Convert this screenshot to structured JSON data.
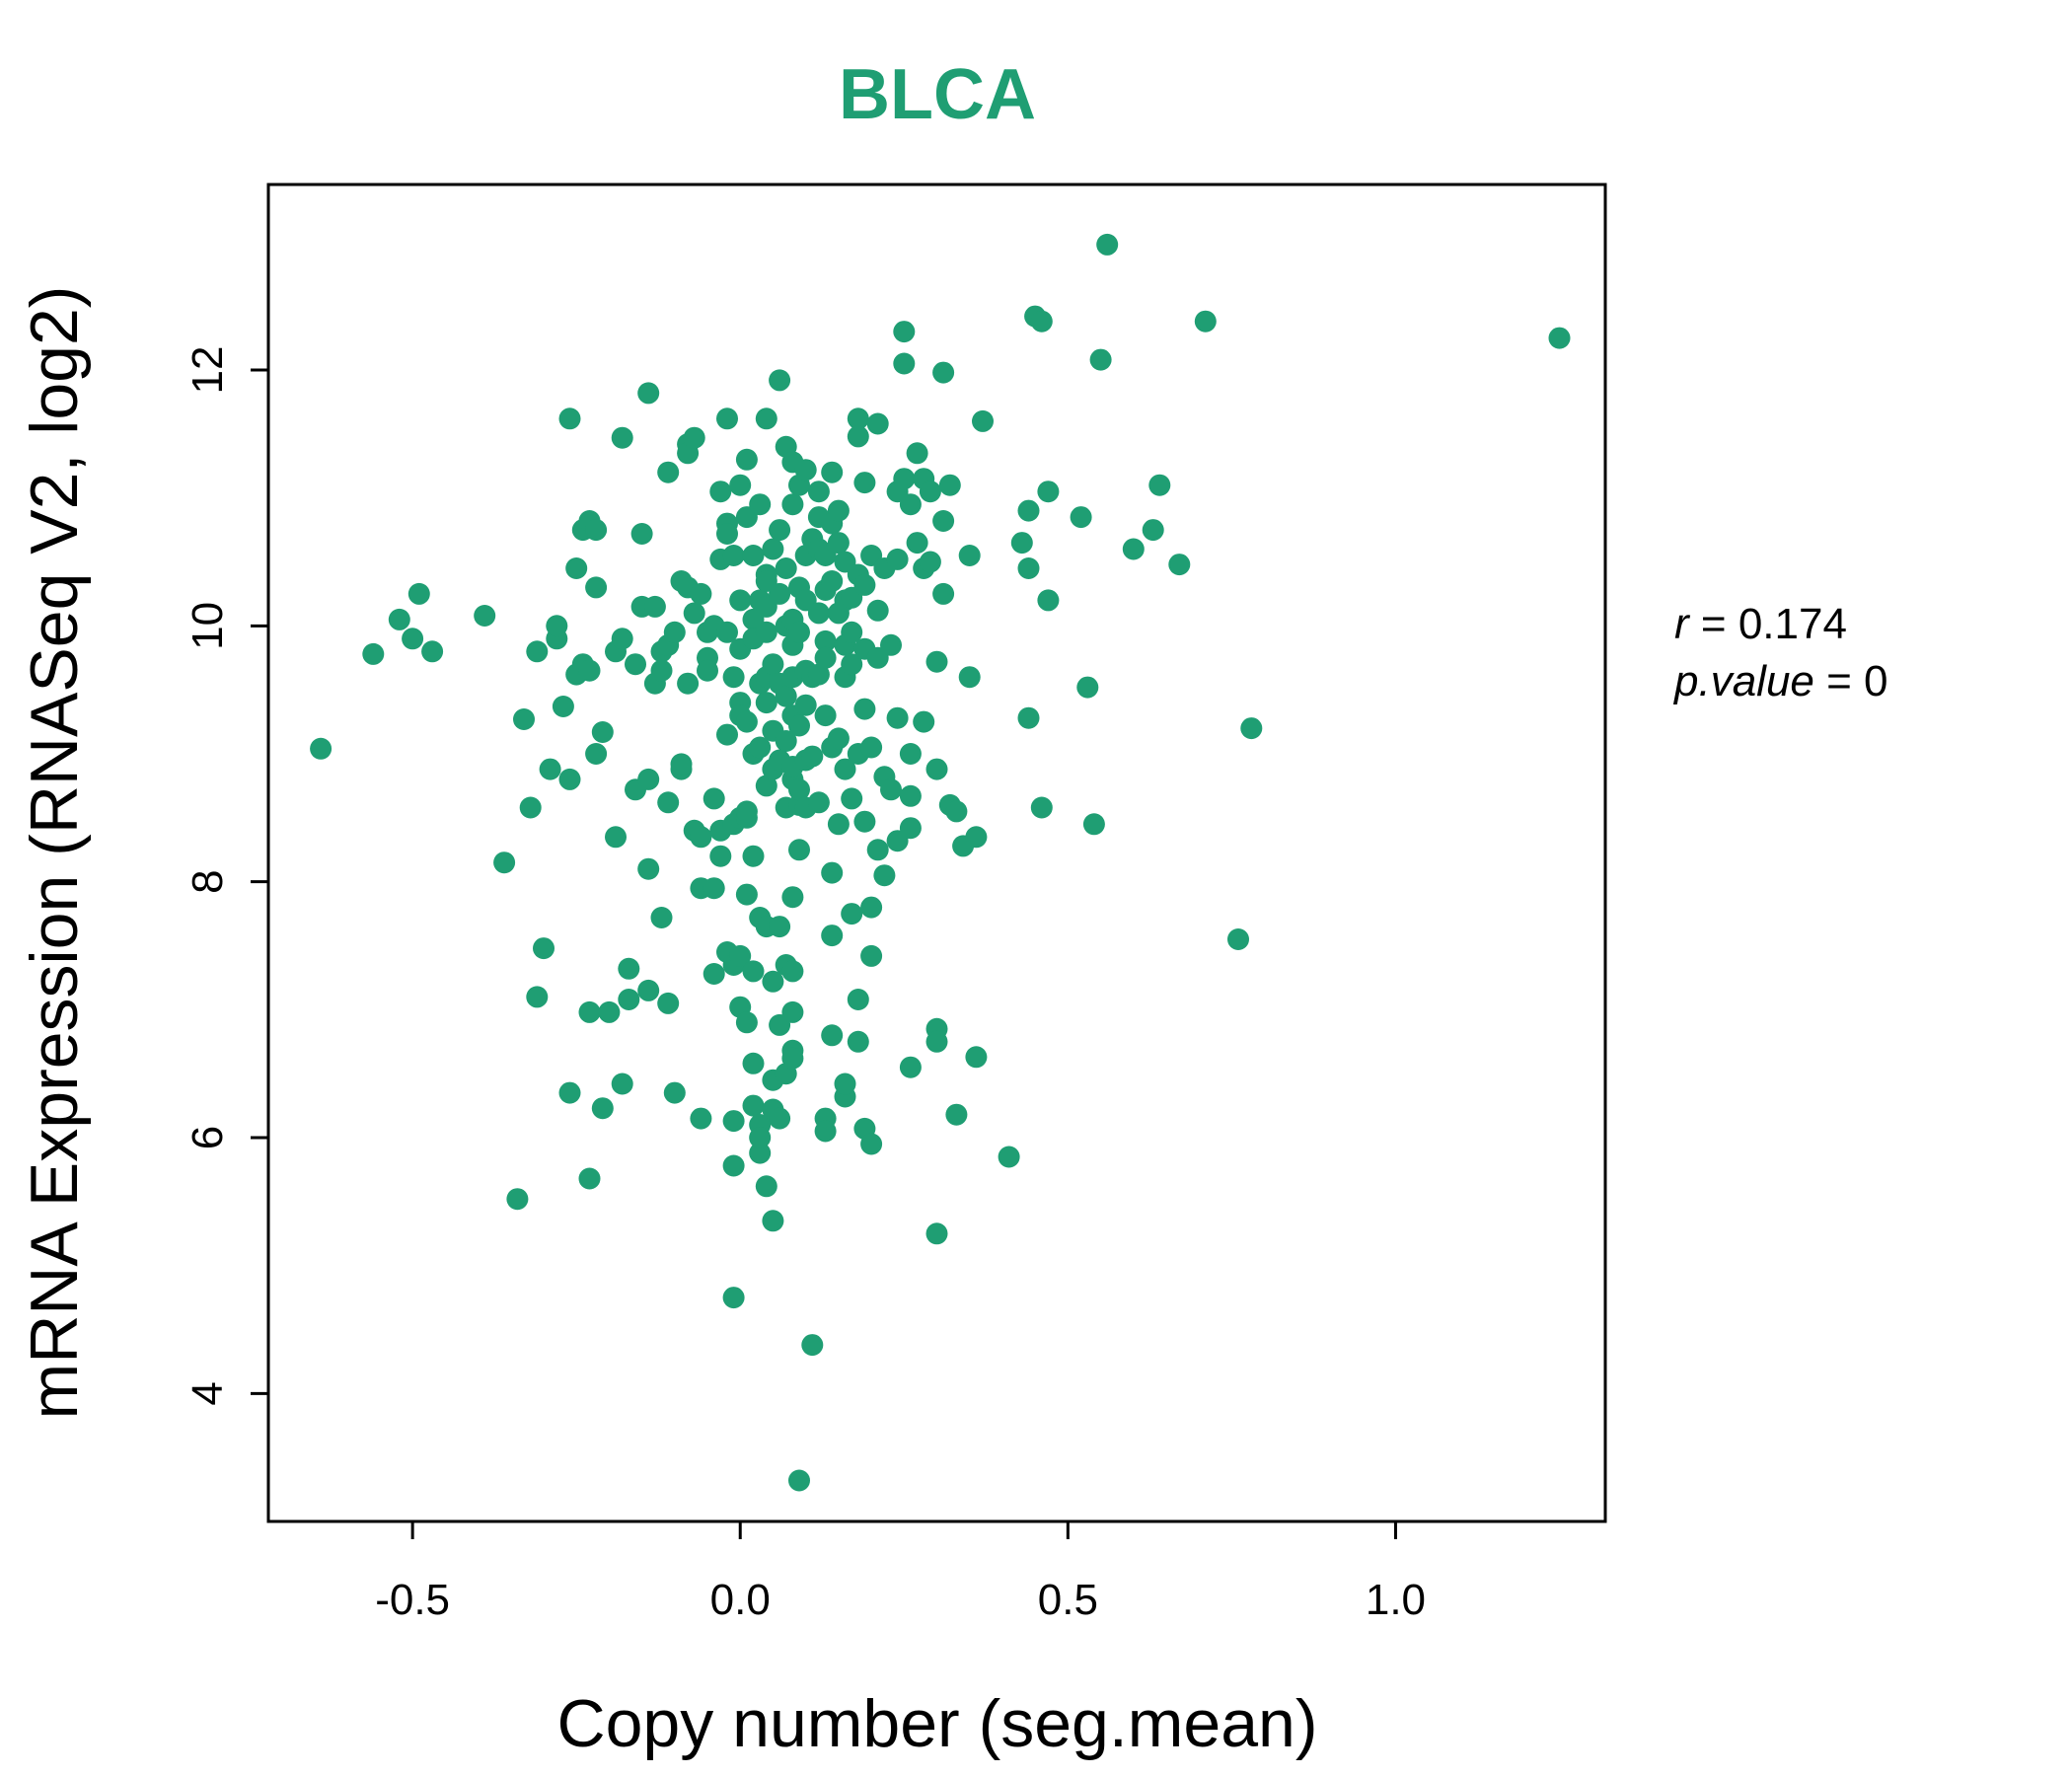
{
  "chart_data": {
    "type": "scatter",
    "title": "BLCA",
    "xlabel": "Copy number (seg.mean)",
    "ylabel": "mRNA Expression (RNASeq V2, log2)",
    "xlim": [
      -0.72,
      1.32
    ],
    "ylim": [
      3.0,
      13.45
    ],
    "x_ticks": [
      -0.5,
      0.0,
      0.5,
      1.0
    ],
    "x_tick_labels": [
      "-0.5",
      "0.0",
      "0.5",
      "1.0"
    ],
    "y_ticks": [
      4,
      6,
      8,
      10,
      12
    ],
    "y_tick_labels": [
      "4",
      "6",
      "8",
      "10",
      "12"
    ],
    "grid": false,
    "point_color": "#1f9e73",
    "title_color": "#1f9e73",
    "stats": {
      "r_var": "r",
      "r_value": "0.174",
      "p_var": "p.value",
      "p_value": "0"
    },
    "points": [
      [
        -0.64,
        9.04
      ],
      [
        -0.56,
        9.78
      ],
      [
        -0.52,
        10.05
      ],
      [
        -0.5,
        9.9
      ],
      [
        -0.49,
        10.25
      ],
      [
        -0.47,
        9.8
      ],
      [
        -0.39,
        10.08
      ],
      [
        -0.36,
        8.15
      ],
      [
        -0.34,
        5.52
      ],
      [
        -0.33,
        9.27
      ],
      [
        -0.32,
        8.58
      ],
      [
        -0.31,
        7.1
      ],
      [
        -0.31,
        9.8
      ],
      [
        -0.3,
        7.48
      ],
      [
        -0.29,
        8.88
      ],
      [
        -0.28,
        9.9
      ],
      [
        -0.28,
        10.0
      ],
      [
        -0.27,
        9.37
      ],
      [
        -0.26,
        8.8
      ],
      [
        -0.26,
        6.35
      ],
      [
        -0.26,
        11.62
      ],
      [
        -0.25,
        10.45
      ],
      [
        -0.25,
        9.62
      ],
      [
        -0.24,
        9.7
      ],
      [
        -0.24,
        10.75
      ],
      [
        -0.23,
        10.82
      ],
      [
        -0.23,
        9.65
      ],
      [
        -0.23,
        6.98
      ],
      [
        -0.23,
        5.68
      ],
      [
        -0.22,
        9.0
      ],
      [
        -0.22,
        10.75
      ],
      [
        -0.22,
        10.3
      ],
      [
        -0.21,
        9.17
      ],
      [
        -0.21,
        6.23
      ],
      [
        -0.2,
        6.98
      ],
      [
        -0.19,
        9.8
      ],
      [
        -0.19,
        8.35
      ],
      [
        -0.18,
        9.9
      ],
      [
        -0.18,
        11.47
      ],
      [
        -0.18,
        6.42
      ],
      [
        -0.17,
        7.08
      ],
      [
        -0.17,
        7.32
      ],
      [
        -0.16,
        9.7
      ],
      [
        -0.16,
        8.72
      ],
      [
        -0.15,
        10.15
      ],
      [
        -0.15,
        10.72
      ],
      [
        -0.14,
        8.8
      ],
      [
        -0.14,
        8.1
      ],
      [
        -0.14,
        11.82
      ],
      [
        -0.14,
        7.15
      ],
      [
        -0.13,
        9.55
      ],
      [
        -0.13,
        10.15
      ],
      [
        -0.12,
        7.72
      ],
      [
        -0.12,
        9.8
      ],
      [
        -0.12,
        9.65
      ],
      [
        -0.11,
        8.62
      ],
      [
        -0.11,
        7.05
      ],
      [
        -0.11,
        11.2
      ],
      [
        -0.11,
        9.85
      ],
      [
        -0.1,
        6.35
      ],
      [
        -0.1,
        9.95
      ],
      [
        -0.09,
        8.88
      ],
      [
        -0.09,
        8.92
      ],
      [
        -0.09,
        10.35
      ],
      [
        -0.08,
        10.3
      ],
      [
        -0.08,
        11.42
      ],
      [
        -0.08,
        11.35
      ],
      [
        -0.08,
        9.55
      ],
      [
        -0.07,
        8.4
      ],
      [
        -0.07,
        10.1
      ],
      [
        -0.07,
        11.47
      ],
      [
        -0.06,
        7.95
      ],
      [
        -0.06,
        6.15
      ],
      [
        -0.06,
        8.35
      ],
      [
        -0.06,
        10.25
      ],
      [
        -0.05,
        9.75
      ],
      [
        -0.05,
        9.65
      ],
      [
        -0.05,
        9.95
      ],
      [
        -0.04,
        7.95
      ],
      [
        -0.04,
        10.0
      ],
      [
        -0.04,
        8.65
      ],
      [
        -0.04,
        7.28
      ],
      [
        -0.03,
        8.2
      ],
      [
        -0.03,
        10.52
      ],
      [
        -0.03,
        8.4
      ],
      [
        -0.03,
        11.05
      ],
      [
        -0.02,
        10.8
      ],
      [
        -0.02,
        9.15
      ],
      [
        -0.02,
        9.95
      ],
      [
        -0.02,
        10.72
      ],
      [
        -0.02,
        11.62
      ],
      [
        -0.02,
        7.45
      ],
      [
        -0.01,
        9.6
      ],
      [
        -0.01,
        10.55
      ],
      [
        -0.01,
        8.45
      ],
      [
        -0.01,
        7.35
      ],
      [
        -0.01,
        4.75
      ],
      [
        -0.01,
        5.78
      ],
      [
        -0.01,
        6.13
      ],
      [
        -0.0,
        9.4
      ],
      [
        -0.0,
        8.5
      ],
      [
        0.0,
        9.3
      ],
      [
        0.0,
        7.42
      ],
      [
        0.0,
        7.02
      ],
      [
        0.0,
        9.82
      ],
      [
        0.0,
        10.2
      ],
      [
        0.0,
        11.1
      ],
      [
        0.01,
        10.85
      ],
      [
        0.01,
        8.5
      ],
      [
        0.01,
        9.25
      ],
      [
        0.01,
        8.55
      ],
      [
        0.01,
        7.9
      ],
      [
        0.01,
        6.9
      ],
      [
        0.01,
        11.3
      ],
      [
        0.02,
        7.3
      ],
      [
        0.02,
        9.0
      ],
      [
        0.02,
        10.05
      ],
      [
        0.02,
        10.55
      ],
      [
        0.02,
        9.9
      ],
      [
        0.02,
        8.2
      ],
      [
        0.02,
        6.58
      ],
      [
        0.02,
        6.25
      ],
      [
        0.03,
        9.55
      ],
      [
        0.03,
        10.2
      ],
      [
        0.03,
        6.1
      ],
      [
        0.03,
        5.88
      ],
      [
        0.03,
        10.95
      ],
      [
        0.03,
        9.05
      ],
      [
        0.03,
        7.72
      ],
      [
        0.03,
        6.0
      ],
      [
        0.04,
        7.65
      ],
      [
        0.04,
        11.62
      ],
      [
        0.04,
        9.6
      ],
      [
        0.04,
        8.75
      ],
      [
        0.04,
        10.4
      ],
      [
        0.04,
        10.15
      ],
      [
        0.04,
        9.4
      ],
      [
        0.04,
        5.62
      ],
      [
        0.04,
        9.95
      ],
      [
        0.04,
        10.35
      ],
      [
        0.05,
        8.88
      ],
      [
        0.05,
        9.18
      ],
      [
        0.05,
        7.22
      ],
      [
        0.05,
        6.45
      ],
      [
        0.05,
        10.6
      ],
      [
        0.05,
        6.22
      ],
      [
        0.05,
        5.35
      ],
      [
        0.05,
        9.7
      ],
      [
        0.06,
        8.95
      ],
      [
        0.06,
        10.25
      ],
      [
        0.06,
        6.15
      ],
      [
        0.06,
        9.55
      ],
      [
        0.06,
        10.75
      ],
      [
        0.06,
        11.92
      ],
      [
        0.06,
        7.65
      ],
      [
        0.06,
        6.88
      ],
      [
        0.07,
        9.45
      ],
      [
        0.07,
        8.58
      ],
      [
        0.07,
        10.0
      ],
      [
        0.07,
        7.35
      ],
      [
        0.07,
        6.5
      ],
      [
        0.07,
        11.4
      ],
      [
        0.07,
        9.1
      ],
      [
        0.07,
        10.45
      ],
      [
        0.08,
        8.8
      ],
      [
        0.08,
        9.85
      ],
      [
        0.08,
        9.3
      ],
      [
        0.08,
        10.95
      ],
      [
        0.08,
        11.28
      ],
      [
        0.08,
        7.88
      ],
      [
        0.08,
        7.3
      ],
      [
        0.08,
        6.68
      ],
      [
        0.08,
        8.9
      ],
      [
        0.08,
        10.05
      ],
      [
        0.08,
        9.6
      ],
      [
        0.08,
        6.98
      ],
      [
        0.08,
        6.62
      ],
      [
        0.09,
        9.22
      ],
      [
        0.09,
        8.6
      ],
      [
        0.09,
        10.3
      ],
      [
        0.09,
        11.1
      ],
      [
        0.09,
        8.25
      ],
      [
        0.09,
        8.72
      ],
      [
        0.09,
        3.32
      ],
      [
        0.09,
        9.95
      ],
      [
        0.1,
        9.65
      ],
      [
        0.1,
        10.2
      ],
      [
        0.1,
        8.95
      ],
      [
        0.1,
        11.22
      ],
      [
        0.1,
        10.55
      ],
      [
        0.1,
        8.58
      ],
      [
        0.1,
        9.38
      ],
      [
        0.11,
        8.98
      ],
      [
        0.11,
        10.68
      ],
      [
        0.11,
        9.6
      ],
      [
        0.11,
        4.38
      ],
      [
        0.12,
        10.1
      ],
      [
        0.12,
        11.05
      ],
      [
        0.12,
        10.85
      ],
      [
        0.12,
        9.62
      ],
      [
        0.12,
        10.6
      ],
      [
        0.12,
        8.62
      ],
      [
        0.13,
        9.88
      ],
      [
        0.13,
        6.15
      ],
      [
        0.13,
        10.55
      ],
      [
        0.13,
        9.3
      ],
      [
        0.13,
        6.05
      ],
      [
        0.13,
        10.28
      ],
      [
        0.13,
        9.75
      ],
      [
        0.14,
        8.07
      ],
      [
        0.14,
        7.58
      ],
      [
        0.14,
        11.2
      ],
      [
        0.14,
        10.8
      ],
      [
        0.14,
        10.35
      ],
      [
        0.14,
        9.05
      ],
      [
        0.14,
        6.8
      ],
      [
        0.15,
        10.9
      ],
      [
        0.15,
        9.12
      ],
      [
        0.15,
        10.65
      ],
      [
        0.15,
        10.1
      ],
      [
        0.15,
        8.45
      ],
      [
        0.16,
        9.85
      ],
      [
        0.16,
        6.32
      ],
      [
        0.16,
        10.5
      ],
      [
        0.16,
        9.6
      ],
      [
        0.16,
        8.88
      ],
      [
        0.16,
        10.2
      ],
      [
        0.16,
        6.42
      ],
      [
        0.17,
        10.22
      ],
      [
        0.17,
        9.7
      ],
      [
        0.17,
        7.75
      ],
      [
        0.17,
        9.95
      ],
      [
        0.17,
        8.65
      ],
      [
        0.18,
        11.62
      ],
      [
        0.18,
        7.08
      ],
      [
        0.18,
        10.4
      ],
      [
        0.18,
        6.75
      ],
      [
        0.18,
        9.0
      ],
      [
        0.18,
        11.48
      ],
      [
        0.19,
        9.35
      ],
      [
        0.19,
        10.32
      ],
      [
        0.19,
        8.47
      ],
      [
        0.19,
        6.07
      ],
      [
        0.19,
        11.12
      ],
      [
        0.19,
        9.82
      ],
      [
        0.2,
        7.8
      ],
      [
        0.2,
        5.95
      ],
      [
        0.2,
        10.55
      ],
      [
        0.2,
        7.42
      ],
      [
        0.2,
        9.05
      ],
      [
        0.21,
        8.25
      ],
      [
        0.21,
        11.58
      ],
      [
        0.21,
        9.75
      ],
      [
        0.21,
        10.12
      ],
      [
        0.22,
        8.05
      ],
      [
        0.22,
        10.45
      ],
      [
        0.22,
        8.82
      ],
      [
        0.23,
        9.85
      ],
      [
        0.23,
        8.72
      ],
      [
        0.24,
        11.05
      ],
      [
        0.24,
        10.52
      ],
      [
        0.24,
        9.28
      ],
      [
        0.24,
        8.32
      ],
      [
        0.25,
        12.3
      ],
      [
        0.25,
        12.05
      ],
      [
        0.25,
        11.15
      ],
      [
        0.26,
        10.95
      ],
      [
        0.26,
        9.0
      ],
      [
        0.26,
        6.55
      ],
      [
        0.26,
        8.67
      ],
      [
        0.26,
        8.42
      ],
      [
        0.27,
        11.35
      ],
      [
        0.27,
        10.65
      ],
      [
        0.28,
        11.15
      ],
      [
        0.28,
        9.25
      ],
      [
        0.28,
        10.45
      ],
      [
        0.29,
        11.05
      ],
      [
        0.29,
        10.5
      ],
      [
        0.3,
        9.72
      ],
      [
        0.3,
        8.88
      ],
      [
        0.3,
        6.85
      ],
      [
        0.3,
        6.75
      ],
      [
        0.3,
        5.25
      ],
      [
        0.31,
        10.82
      ],
      [
        0.31,
        10.25
      ],
      [
        0.31,
        11.98
      ],
      [
        0.32,
        11.1
      ],
      [
        0.32,
        8.6
      ],
      [
        0.33,
        6.18
      ],
      [
        0.33,
        8.55
      ],
      [
        0.34,
        8.28
      ],
      [
        0.35,
        10.55
      ],
      [
        0.35,
        9.6
      ],
      [
        0.36,
        8.35
      ],
      [
        0.36,
        6.63
      ],
      [
        0.37,
        11.6
      ],
      [
        0.41,
        5.85
      ],
      [
        0.43,
        10.65
      ],
      [
        0.44,
        10.45
      ],
      [
        0.44,
        10.9
      ],
      [
        0.44,
        9.28
      ],
      [
        0.45,
        12.42
      ],
      [
        0.46,
        12.38
      ],
      [
        0.46,
        8.58
      ],
      [
        0.47,
        10.2
      ],
      [
        0.47,
        11.05
      ],
      [
        0.52,
        10.85
      ],
      [
        0.53,
        9.52
      ],
      [
        0.54,
        8.45
      ],
      [
        0.55,
        12.08
      ],
      [
        0.6,
        10.6
      ],
      [
        0.63,
        10.75
      ],
      [
        0.64,
        11.1
      ],
      [
        0.56,
        12.98
      ],
      [
        0.67,
        10.48
      ],
      [
        0.71,
        12.38
      ],
      [
        0.76,
        7.55
      ],
      [
        0.78,
        9.2
      ],
      [
        1.25,
        12.25
      ]
    ]
  }
}
